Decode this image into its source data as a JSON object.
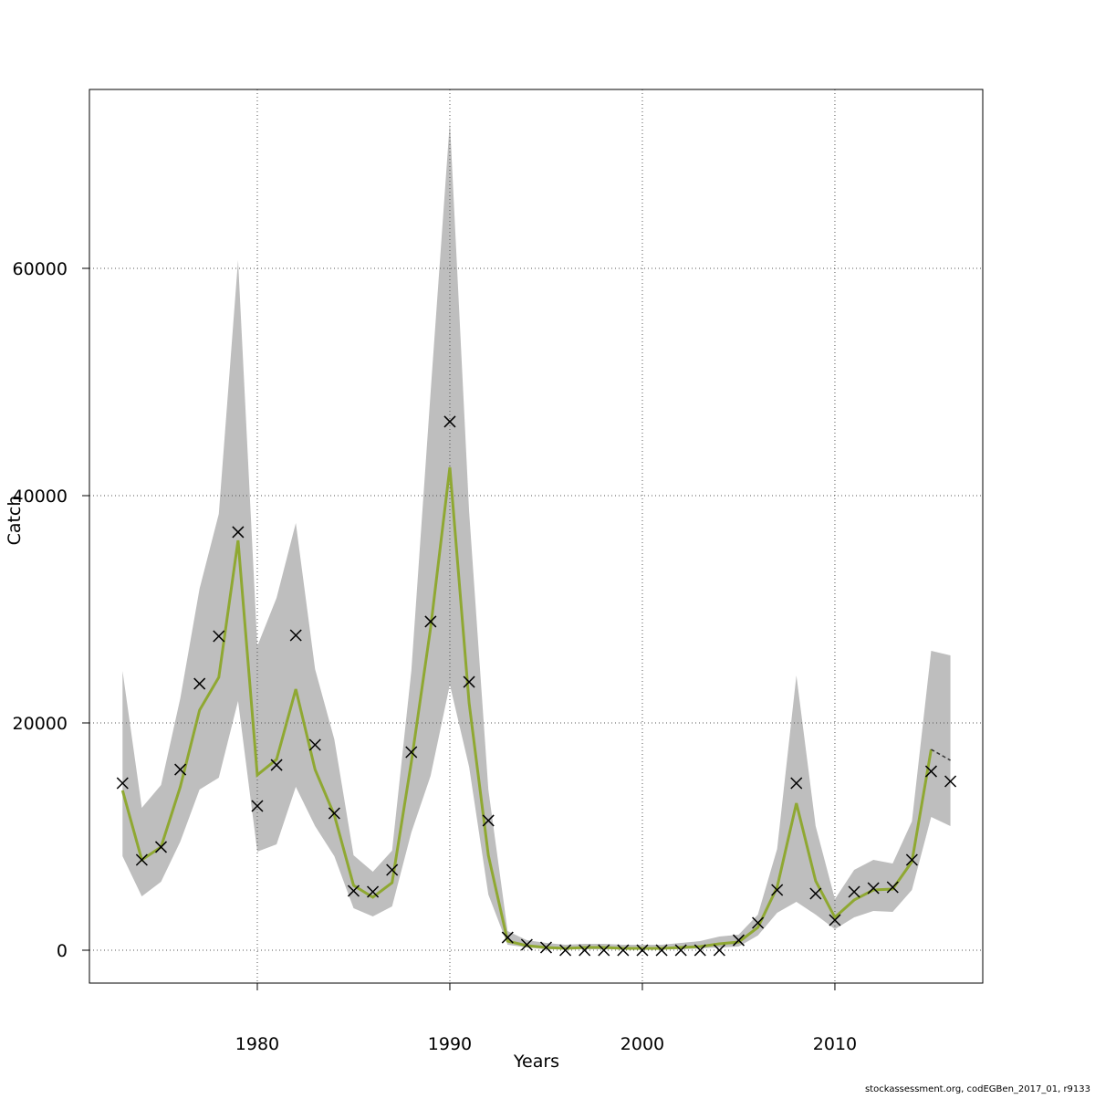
{
  "chart_data": {
    "type": "line",
    "xlabel": "Years",
    "ylabel": "Catch",
    "footnote": "stockassessment.org, codEGBen_2017_01, r9133",
    "x": [
      1973,
      1974,
      1975,
      1976,
      1977,
      1978,
      1979,
      1980,
      1981,
      1982,
      1983,
      1984,
      1985,
      1986,
      1987,
      1988,
      1989,
      1990,
      1991,
      1992,
      1993,
      1994,
      1995,
      1996,
      1997,
      1998,
      1999,
      2000,
      2001,
      2002,
      2003,
      2004,
      2005,
      2006,
      2007,
      2008,
      2009,
      2010,
      2011,
      2012,
      2013,
      2014,
      2015,
      2016
    ],
    "observed": [
      14700,
      7950,
      9080,
      15900,
      23450,
      27630,
      36790,
      12690,
      16300,
      27710,
      18070,
      12050,
      5220,
      5140,
      7070,
      17430,
      28920,
      46510,
      23610,
      11410,
      1120,
      480,
      240,
      0,
      0,
      0,
      0,
      0,
      0,
      0,
      0,
      0,
      880,
      2410,
      5300,
      14700,
      4980,
      2650,
      5140,
      5460,
      5540,
      7950,
      15740,
      14860
    ],
    "estimate": [
      14060,
      7950,
      9080,
      14380,
      21120,
      24020,
      36060,
      15420,
      16790,
      22970,
      15900,
      11890,
      5700,
      4660,
      5940,
      16550,
      28350,
      42490,
      21770,
      8350,
      800,
      400,
      240,
      160,
      240,
      240,
      160,
      160,
      160,
      240,
      320,
      560,
      720,
      2010,
      5540,
      12930,
      6100,
      2890,
      4420,
      5300,
      5380,
      7790,
      17670,
      null
    ],
    "forecast": [
      null,
      null,
      null,
      null,
      null,
      null,
      null,
      null,
      null,
      null,
      null,
      null,
      null,
      null,
      null,
      null,
      null,
      null,
      null,
      null,
      null,
      null,
      null,
      null,
      null,
      null,
      null,
      null,
      null,
      null,
      null,
      null,
      null,
      null,
      null,
      null,
      null,
      null,
      null,
      null,
      null,
      null,
      17670,
      16710
    ],
    "upper": [
      24580,
      12530,
      14540,
      22170,
      31810,
      38390,
      60720,
      26750,
      31000,
      37590,
      24740,
      18550,
      8350,
      6910,
      8760,
      24580,
      49080,
      72930,
      38630,
      14140,
      1690,
      880,
      640,
      480,
      560,
      560,
      480,
      480,
      480,
      640,
      800,
      1200,
      1370,
      3130,
      8920,
      24180,
      10920,
      4500,
      7070,
      7950,
      7630,
      11330,
      26350,
      25940
    ],
    "lower": [
      8270,
      4740,
      6020,
      9560,
      14140,
      15180,
      21930,
      8670,
      9320,
      14380,
      10920,
      8270,
      3690,
      2970,
      3860,
      10360,
      15340,
      23370,
      16140,
      4900,
      480,
      240,
      80,
      80,
      80,
      80,
      80,
      80,
      80,
      80,
      160,
      240,
      320,
      1290,
      3290,
      4260,
      3130,
      1850,
      2890,
      3450,
      3370,
      5300,
      11730,
      10920
    ],
    "estimate_color": "#8fa832",
    "band_color": "#bebebe",
    "observed_color": "#000000",
    "forecast_color": "#333333",
    "xlim": [
      1971.28,
      2017.68
    ],
    "ylim": [
      -2892,
      75743
    ],
    "xticks": [
      1980,
      1990,
      2000,
      2010
    ],
    "yticks": [
      0,
      20000,
      40000,
      60000
    ],
    "grid": true
  }
}
